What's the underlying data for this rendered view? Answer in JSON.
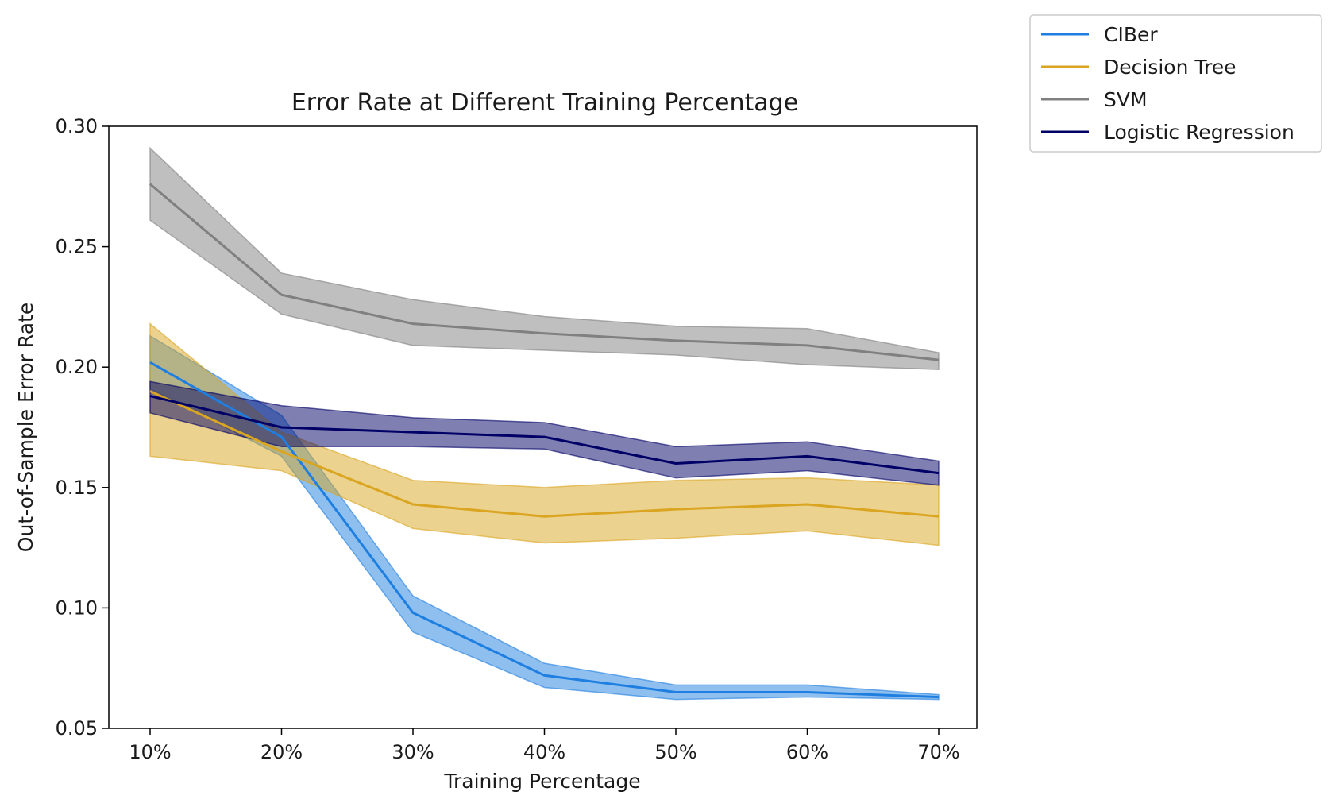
{
  "chart_data": {
    "type": "line",
    "title": "Error Rate at Different Training Percentage",
    "xlabel": "Training Percentage",
    "ylabel": "Out-of-Sample Error Rate",
    "categories": [
      "10%",
      "20%",
      "30%",
      "40%",
      "50%",
      "60%",
      "70%"
    ],
    "ylim": [
      0.05,
      0.3
    ],
    "yticks": [
      0.05,
      0.1,
      0.15,
      0.2,
      0.25,
      0.3
    ],
    "ytick_labels": [
      "0.05",
      "0.10",
      "0.15",
      "0.20",
      "0.25",
      "0.30"
    ],
    "grid": false,
    "legend_position": "outside-top-right",
    "series": [
      {
        "name": "CIBer",
        "color": "#1f7fe0",
        "values": [
          0.202,
          0.171,
          0.098,
          0.072,
          0.065,
          0.065,
          0.063
        ],
        "lower": [
          0.191,
          0.163,
          0.09,
          0.067,
          0.062,
          0.063,
          0.062
        ],
        "upper": [
          0.213,
          0.18,
          0.105,
          0.077,
          0.068,
          0.068,
          0.064
        ]
      },
      {
        "name": "Decision Tree",
        "color": "#daa520",
        "values": [
          0.19,
          0.165,
          0.143,
          0.138,
          0.141,
          0.143,
          0.138
        ],
        "lower": [
          0.163,
          0.157,
          0.133,
          0.127,
          0.129,
          0.132,
          0.126
        ],
        "upper": [
          0.218,
          0.173,
          0.153,
          0.15,
          0.153,
          0.154,
          0.151
        ]
      },
      {
        "name": "SVM",
        "color": "#808080",
        "values": [
          0.276,
          0.23,
          0.218,
          0.214,
          0.211,
          0.209,
          0.203
        ],
        "lower": [
          0.261,
          0.222,
          0.209,
          0.207,
          0.205,
          0.201,
          0.199
        ],
        "upper": [
          0.291,
          0.239,
          0.228,
          0.221,
          0.217,
          0.216,
          0.206
        ]
      },
      {
        "name": "Logistic Regression",
        "color": "#000066",
        "values": [
          0.188,
          0.175,
          0.173,
          0.171,
          0.16,
          0.163,
          0.156
        ],
        "lower": [
          0.181,
          0.167,
          0.167,
          0.166,
          0.154,
          0.157,
          0.151
        ],
        "upper": [
          0.194,
          0.184,
          0.179,
          0.177,
          0.167,
          0.169,
          0.161
        ]
      }
    ]
  }
}
